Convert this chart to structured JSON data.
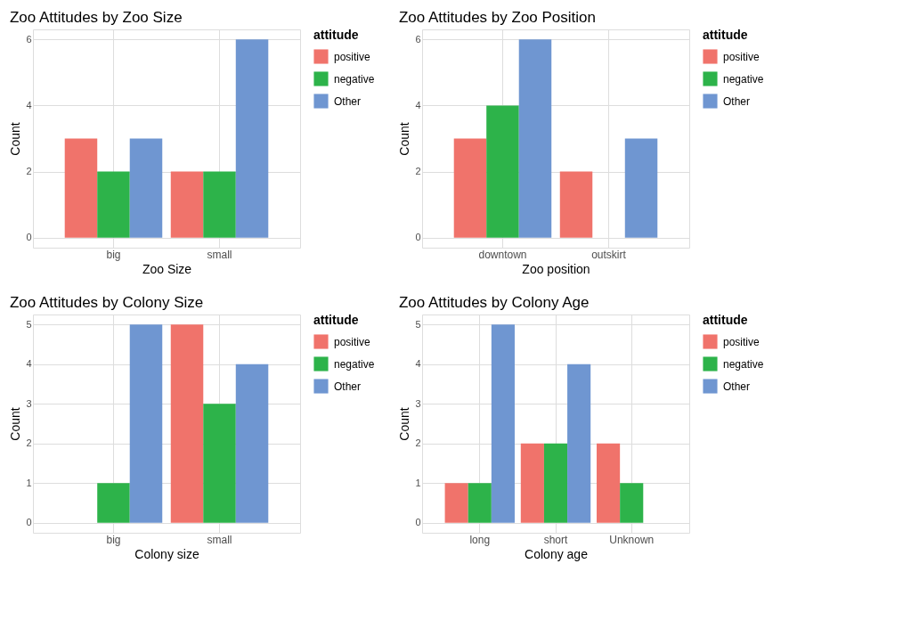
{
  "chart_data": [
    {
      "type": "bar",
      "title": "Zoo Attitudes by Zoo Size",
      "xlabel": "Zoo Size",
      "ylabel": "Count",
      "legend_title": "attitude",
      "legend": "right",
      "grid": true,
      "categories": [
        "big",
        "small"
      ],
      "ylim": [
        -0.3,
        6.3
      ],
      "yticks": [
        0,
        2,
        4,
        6
      ],
      "series": [
        {
          "name": "positive",
          "color": "#f0736b",
          "values": [
            3,
            2
          ]
        },
        {
          "name": "negative",
          "color": "#2db34a",
          "values": [
            2,
            2
          ]
        },
        {
          "name": "Other",
          "color": "#6f96d1",
          "values": [
            3,
            6
          ]
        }
      ]
    },
    {
      "type": "bar",
      "title": "Zoo Attitudes by Zoo Position",
      "xlabel": "Zoo position",
      "ylabel": "Count",
      "legend_title": "attitude",
      "legend": "right",
      "grid": true,
      "categories": [
        "downtown",
        "outskirt"
      ],
      "ylim": [
        -0.3,
        6.3
      ],
      "yticks": [
        0,
        2,
        4,
        6
      ],
      "series": [
        {
          "name": "positive",
          "color": "#f0736b",
          "values": [
            3,
            2
          ]
        },
        {
          "name": "negative",
          "color": "#2db34a",
          "values": [
            4,
            null
          ]
        },
        {
          "name": "Other",
          "color": "#6f96d1",
          "values": [
            6,
            3
          ]
        }
      ]
    },
    {
      "type": "bar",
      "title": "Zoo Attitudes by Colony Size",
      "xlabel": "Colony size",
      "ylabel": "Count",
      "legend_title": "attitude",
      "legend": "right",
      "grid": true,
      "categories": [
        "big",
        "small"
      ],
      "ylim": [
        -0.25,
        5.25
      ],
      "yticks": [
        0,
        1,
        2,
        3,
        4,
        5
      ],
      "series": [
        {
          "name": "positive",
          "color": "#f0736b",
          "values": [
            null,
            5
          ]
        },
        {
          "name": "negative",
          "color": "#2db34a",
          "values": [
            1,
            3
          ]
        },
        {
          "name": "Other",
          "color": "#6f96d1",
          "values": [
            5,
            4
          ]
        }
      ]
    },
    {
      "type": "bar",
      "title": "Zoo Attitudes by Colony Age",
      "xlabel": "Colony age",
      "ylabel": "Count",
      "legend_title": "attitude",
      "legend": "right",
      "grid": true,
      "categories": [
        "long",
        "short",
        "Unknown"
      ],
      "ylim": [
        -0.25,
        5.25
      ],
      "yticks": [
        0,
        1,
        2,
        3,
        4,
        5
      ],
      "series": [
        {
          "name": "positive",
          "color": "#f0736b",
          "values": [
            1,
            2,
            2
          ]
        },
        {
          "name": "negative",
          "color": "#2db34a",
          "values": [
            1,
            2,
            1
          ]
        },
        {
          "name": "Other",
          "color": "#6f96d1",
          "values": [
            5,
            4,
            null
          ]
        }
      ]
    }
  ]
}
